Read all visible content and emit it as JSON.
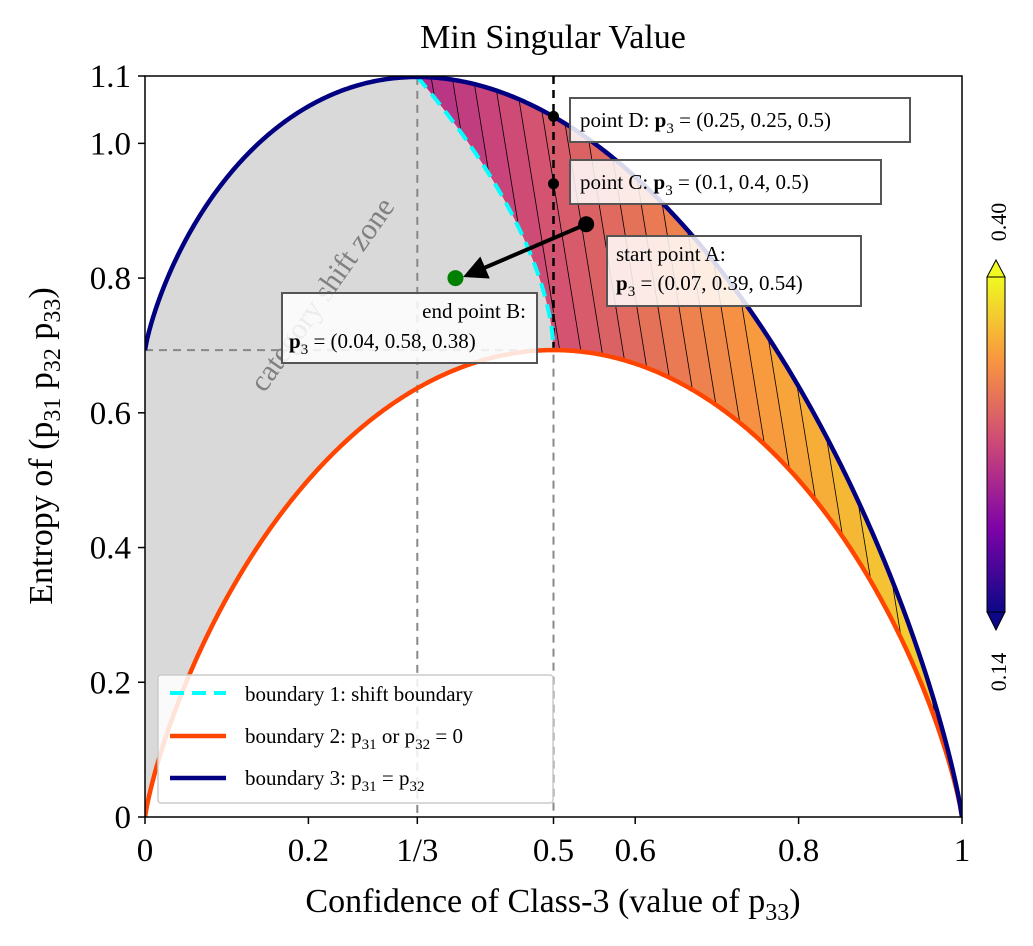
{
  "chart_data": {
    "type": "area",
    "title": "Min Singular Value",
    "xlabel": "Confidence of Class-3 (value of p",
    "xlabel_sub": "33",
    "xlabel_end": ")",
    "ylabel": "Entropy of (p",
    "ylabel_parts": [
      "31",
      " p",
      "32",
      " p",
      "33",
      ")"
    ],
    "xlim": [
      0,
      1
    ],
    "ylim": [
      0,
      1.1
    ],
    "x_ticks": [
      {
        "value": 0,
        "label": "0"
      },
      {
        "value": 0.2,
        "label": "0.2"
      },
      {
        "value": 0.3333,
        "label": "1/3"
      },
      {
        "value": 0.5,
        "label": "0.5"
      },
      {
        "value": 0.6,
        "label": "0.6"
      },
      {
        "value": 0.8,
        "label": "0.8"
      },
      {
        "value": 1,
        "label": "1"
      }
    ],
    "y_ticks": [
      {
        "value": 0,
        "label": "0"
      },
      {
        "value": 0.2,
        "label": "0.2"
      },
      {
        "value": 0.4,
        "label": "0.4"
      },
      {
        "value": 0.6,
        "label": "0.6"
      },
      {
        "value": 0.8,
        "label": "0.8"
      },
      {
        "value": 1.0,
        "label": "1.0"
      },
      {
        "value": 1.1,
        "label": "1.1"
      }
    ],
    "colorbar": {
      "min": 0.14,
      "max": 0.4,
      "min_label": "0.14",
      "max_label": "0.40",
      "colormap": "plasma",
      "extend": "both"
    },
    "zone_label": "category shift zone",
    "reference_lines": [
      {
        "axis": "x",
        "value": 0.3333,
        "style": "dashed",
        "color": "#888888"
      },
      {
        "axis": "x",
        "value": 0.5,
        "style": "dashed",
        "color": "#888888"
      },
      {
        "axis": "y",
        "value": 0.6931,
        "style": "dashed",
        "color": "#888888"
      }
    ],
    "d_line": {
      "x": 0.5,
      "style": "dashed",
      "color": "#000000"
    },
    "points": [
      {
        "name": "A",
        "x": 0.54,
        "y": 0.88
      },
      {
        "name": "B",
        "x": 0.38,
        "y": 0.8
      },
      {
        "name": "C",
        "x": 0.5,
        "y": 0.94
      },
      {
        "name": "D",
        "x": 0.5,
        "y": 1.04
      }
    ],
    "annotations": [
      {
        "id": "D",
        "lines": [
          [
            "point D: ",
            ""
          ],
          [
            "p",
            "3"
          ],
          [
            " = (0.25, 0.25, 0.5)",
            ""
          ]
        ]
      },
      {
        "id": "C",
        "lines": [
          [
            "point C: ",
            ""
          ],
          [
            "p",
            "3"
          ],
          [
            " = (0.1, 0.4, 0.5)",
            ""
          ]
        ]
      },
      {
        "id": "A",
        "line1": "start point A:",
        "line2_bold": "p",
        "line2_sub": "3",
        "line2_rest": " = (0.07, 0.39, 0.54)"
      },
      {
        "id": "B",
        "line1": "end point B:",
        "line2_bold": "p",
        "line2_sub": "3",
        "line2_rest": " = (0.04, 0.58, 0.38)"
      }
    ],
    "legend": {
      "position": "lower-left",
      "items": [
        {
          "label": "boundary 1: shift boundary",
          "color": "#00ffff",
          "style": "dashed"
        },
        {
          "label": "boundary 2: p",
          "sub1": "31",
          "mid": " or p",
          "sub2": "32",
          "end": " = 0",
          "color": "#ff4500",
          "style": "solid"
        },
        {
          "label": "boundary 3: p",
          "sub1": "31",
          "mid": " = p",
          "sub2": "32",
          "end": "",
          "color": "#000080",
          "style": "solid"
        }
      ]
    },
    "series": [
      {
        "kind": "boundary-3",
        "formula": "entropy(p31 = p32 = (1-x)/2, x)"
      },
      {
        "kind": "boundary-2",
        "formula": "entropy(1-x, x)"
      },
      {
        "kind": "boundary-1",
        "x_range": [
          0.3333,
          0.5
        ],
        "y_range": [
          0.6931,
          1.0986
        ]
      }
    ]
  },
  "colors": {
    "upper_boundary": "#000080",
    "lower_boundary": "#ff4500",
    "shift_boundary": "#00ffff",
    "shift_zone_fill": "#d9d9d9",
    "point_b": "#008000"
  }
}
